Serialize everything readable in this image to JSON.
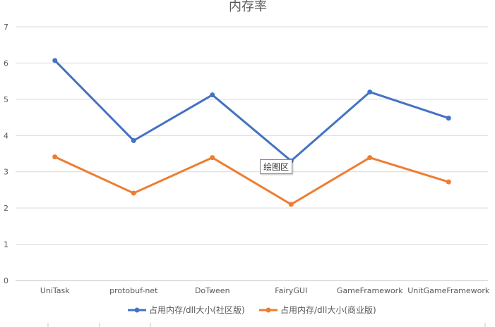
{
  "chart_data": {
    "type": "line",
    "title": "内存率",
    "xlabel": "",
    "ylabel": "",
    "ylim": [
      0,
      7
    ],
    "yticks": [
      0,
      1,
      2,
      3,
      4,
      5,
      6,
      7
    ],
    "grid": true,
    "legend_position": "bottom",
    "categories": [
      "UniTask",
      "protobuf-net",
      "DoTween",
      "FairyGUI",
      "GameFramework",
      "UnitGameFramework"
    ],
    "series": [
      {
        "name": "占用内存/dll大小(社区版)",
        "color": "#4472C4",
        "values": [
          6.07,
          3.86,
          5.12,
          3.3,
          5.2,
          4.48
        ]
      },
      {
        "name": "占用内存/dll大小(商业版)",
        "color": "#ED7D31",
        "values": [
          3.41,
          2.41,
          3.39,
          2.1,
          3.39,
          2.72
        ]
      }
    ]
  },
  "tooltip": {
    "text": "绘图区"
  }
}
